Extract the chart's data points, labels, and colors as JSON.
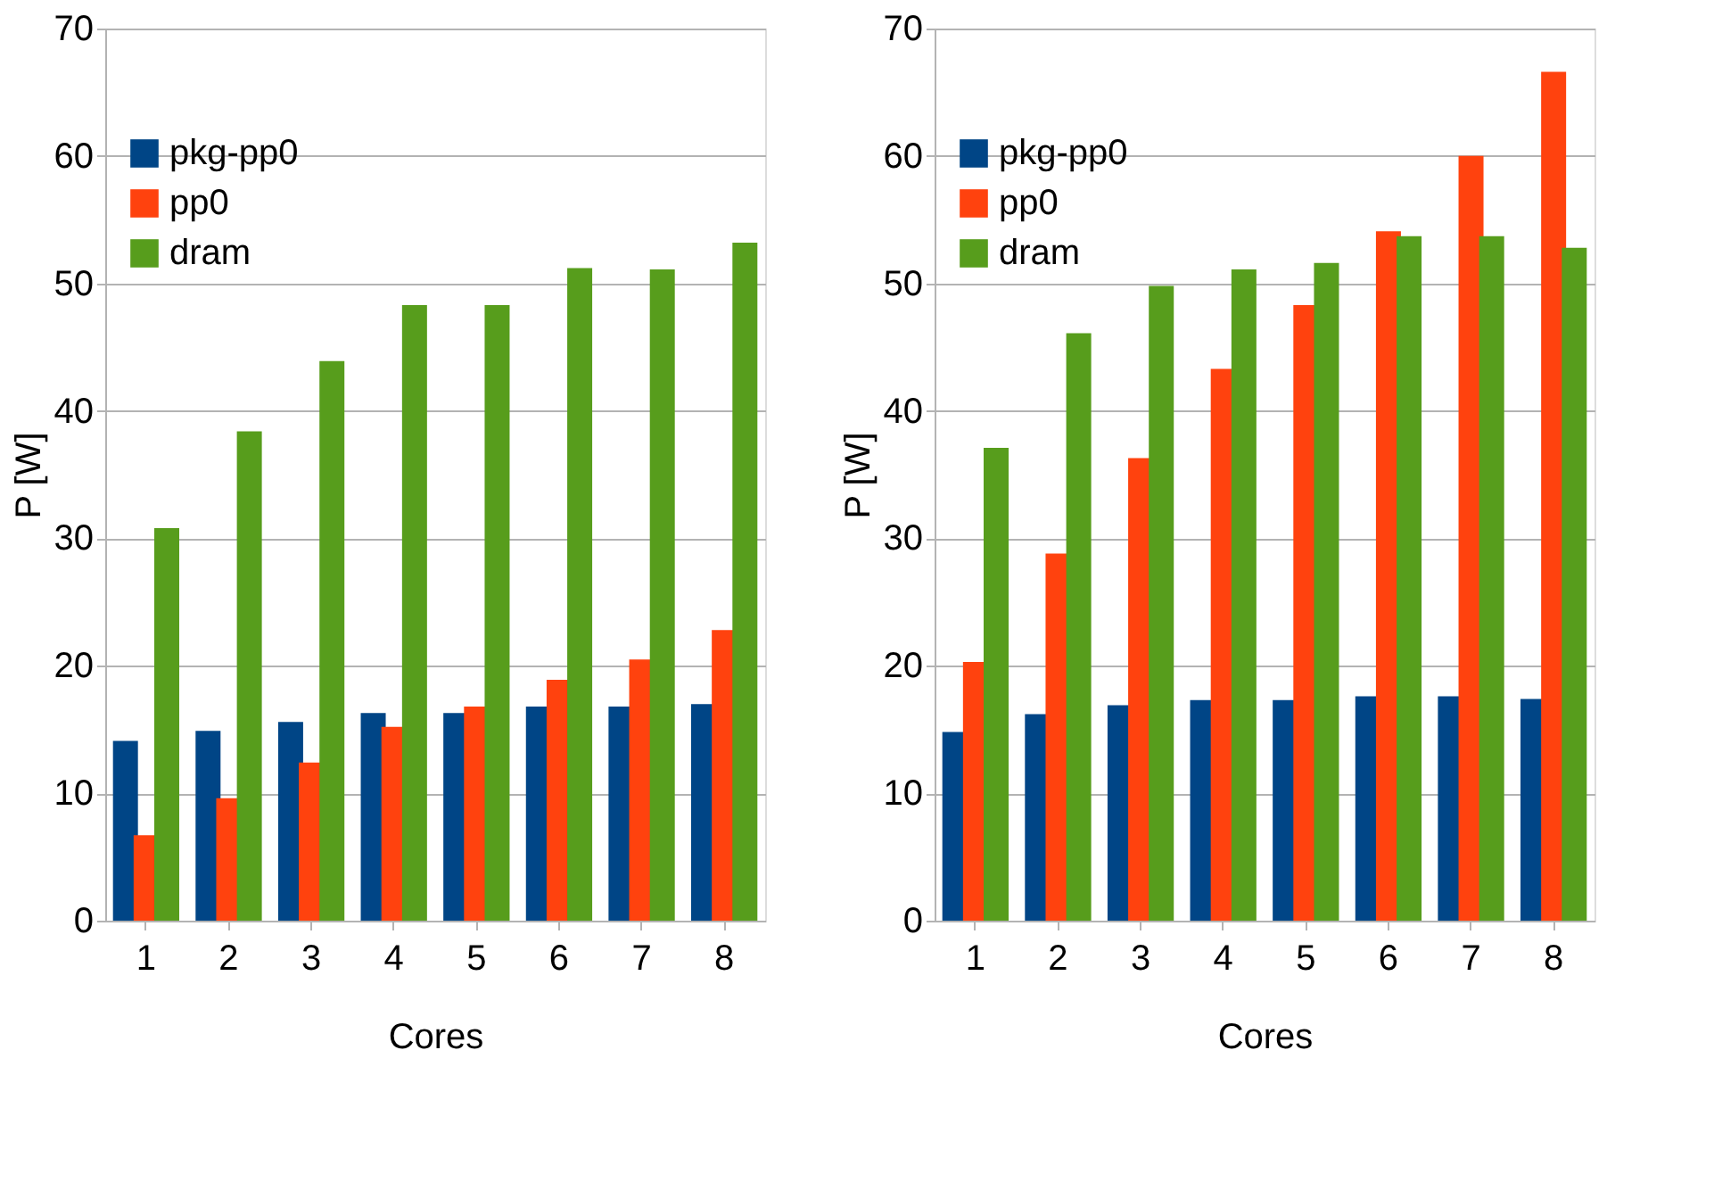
{
  "chart_data": [
    {
      "type": "bar",
      "categories": [
        "1",
        "2",
        "3",
        "4",
        "5",
        "6",
        "7",
        "8"
      ],
      "xlabel": "Cores",
      "ylabel": "P [W]",
      "ylim": [
        0,
        70
      ],
      "yticks": [
        0,
        10,
        20,
        30,
        40,
        50,
        60,
        70
      ],
      "grid": "y",
      "legend": "top left",
      "series": [
        {
          "name": "pkg-pp0",
          "color": "#004586",
          "values": [
            14.1,
            14.9,
            15.6,
            16.3,
            16.3,
            16.8,
            16.8,
            17.0
          ]
        },
        {
          "name": "pp0",
          "color": "#ff420e",
          "values": [
            6.7,
            9.6,
            12.4,
            15.2,
            16.8,
            18.9,
            20.5,
            22.8
          ]
        },
        {
          "name": "dram",
          "color": "#579d1c",
          "values": [
            30.8,
            38.4,
            43.9,
            48.3,
            48.3,
            51.2,
            51.1,
            53.2
          ]
        }
      ]
    },
    {
      "type": "bar",
      "categories": [
        "1",
        "2",
        "3",
        "4",
        "5",
        "6",
        "7",
        "8"
      ],
      "xlabel": "Cores",
      "ylabel": "P [W]",
      "ylim": [
        0,
        70
      ],
      "yticks": [
        0,
        10,
        20,
        30,
        40,
        50,
        60,
        70
      ],
      "grid": "y",
      "legend": "top left",
      "series": [
        {
          "name": "pkg-pp0",
          "color": "#004586",
          "values": [
            14.8,
            16.2,
            16.9,
            17.3,
            17.3,
            17.6,
            17.6,
            17.4
          ]
        },
        {
          "name": "pp0",
          "color": "#ff420e",
          "values": [
            20.3,
            28.8,
            36.3,
            43.3,
            48.3,
            54.1,
            60.0,
            66.6
          ]
        },
        {
          "name": "dram",
          "color": "#579d1c",
          "values": [
            37.1,
            46.1,
            49.8,
            51.1,
            51.6,
            53.7,
            53.7,
            52.8
          ]
        }
      ]
    }
  ]
}
